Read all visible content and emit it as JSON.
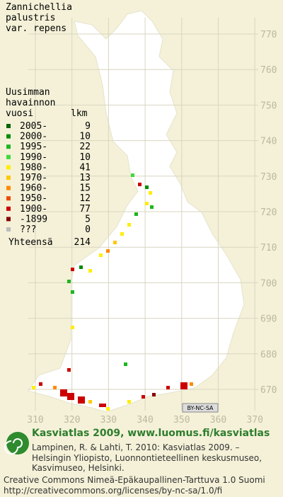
{
  "title": [
    "Zannichellia",
    "palustris",
    "var. repens"
  ],
  "grid": {
    "x_labels": [
      "310",
      "320",
      "330",
      "340",
      "350",
      "360",
      "370"
    ],
    "y_labels": [
      "770",
      "760",
      "750",
      "740",
      "730",
      "720",
      "710",
      "700",
      "690",
      "680",
      "670"
    ]
  },
  "legend": {
    "header": [
      "Uusimman",
      "havainnon",
      "vuosi",
      "lkm"
    ],
    "rows": [
      {
        "label": "2005-",
        "count": "9",
        "color": "#006400"
      },
      {
        "label": "2000-",
        "count": "10",
        "color": "#008c00"
      },
      {
        "label": "1995-",
        "count": "22",
        "color": "#1fb51f"
      },
      {
        "label": "1990-",
        "count": "10",
        "color": "#3fd93f"
      },
      {
        "label": "1980-",
        "count": "41",
        "color": "#ffee00"
      },
      {
        "label": "1970-",
        "count": "13",
        "color": "#ffc800"
      },
      {
        "label": "1960-",
        "count": "15",
        "color": "#ff8a00"
      },
      {
        "label": "1950-",
        "count": "12",
        "color": "#ee4a00"
      },
      {
        "label": "1900-",
        "count": "77",
        "color": "#cc0000"
      },
      {
        "label": "-1899",
        "count": "5",
        "color": "#880000"
      },
      {
        "label": "???",
        "count": "0",
        "color": "#bbbbbb"
      }
    ],
    "total": {
      "label": "Yhteensä",
      "count": "214"
    }
  },
  "badge": "BY-NC-SA",
  "footer": {
    "heading": "Kasviatlas 2009, www.luomus.fi/kasviatlas",
    "citation": [
      "Lampinen, R. & Lahti, T. 2010: Kasviatlas 2009. –",
      "Helsingin Yliopisto, Luonnontieteellinen keskusmuseo,",
      "Kasvimuseo, Helsinki."
    ],
    "license": [
      "Creative Commons Nimeä-Epäkaupallinen-Tarttuva 1.0 Suomi",
      "http://creativecommons.org/licenses/by-nc-sa/1.0/fi"
    ]
  }
}
